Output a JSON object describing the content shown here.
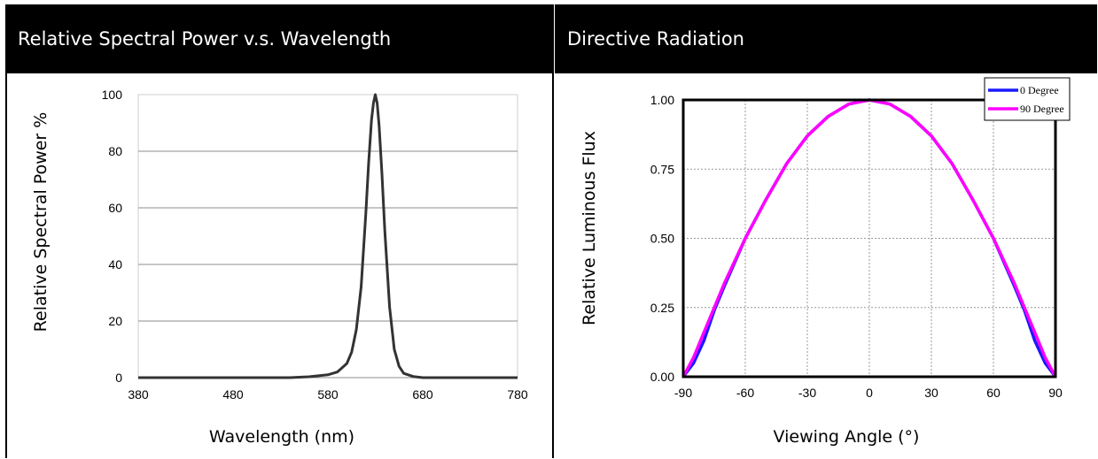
{
  "header": {
    "left_title": "Relative Spectral Power v.s. Wavelength",
    "right_title": "Directive Radiation"
  },
  "chart_data": [
    {
      "type": "line",
      "xlabel": "Wavelength (nm)",
      "ylabel": "Relative Spectral Power %",
      "xlim": [
        380,
        780
      ],
      "ylim": [
        0,
        100
      ],
      "x_ticks": [
        380,
        480,
        580,
        680,
        780
      ],
      "y_ticks": [
        0,
        20,
        40,
        60,
        80,
        100
      ],
      "grid": "horizontal",
      "legend": "none",
      "series": [
        {
          "color": "#333333",
          "x": [
            380,
            540,
            560,
            580,
            590,
            600,
            605,
            610,
            615,
            620,
            623,
            626,
            628,
            630,
            632,
            634,
            637,
            640,
            645,
            650,
            655,
            660,
            670,
            680,
            780
          ],
          "y": [
            0,
            0,
            0.3,
            1,
            2,
            5,
            9,
            17,
            32,
            58,
            76,
            91,
            97,
            100,
            97,
            89,
            72,
            52,
            25,
            10,
            4,
            1.5,
            0.4,
            0,
            0
          ]
        }
      ]
    },
    {
      "type": "line",
      "xlabel": "Viewing Angle (°)",
      "ylabel": "Relative Luminous Flux",
      "xlim": [
        -90,
        90
      ],
      "ylim": [
        0,
        1
      ],
      "x_ticks": [
        -90,
        -60,
        -30,
        0,
        30,
        60,
        90
      ],
      "y_ticks": [
        "0.00",
        "0.25",
        "0.50",
        "0.75",
        "1.00"
      ],
      "grid": "both",
      "legend": "top-right",
      "series": [
        {
          "name": "0 Degree",
          "color": "#1a1aff",
          "x": [
            -90,
            -85,
            -80,
            -75,
            -70,
            -60,
            -50,
            -40,
            -30,
            -20,
            -10,
            0,
            10,
            20,
            30,
            40,
            50,
            60,
            70,
            75,
            80,
            85,
            90
          ],
          "y": [
            0,
            0.05,
            0.13,
            0.24,
            0.33,
            0.5,
            0.64,
            0.77,
            0.87,
            0.94,
            0.985,
            1,
            0.985,
            0.94,
            0.87,
            0.77,
            0.64,
            0.5,
            0.33,
            0.24,
            0.13,
            0.05,
            0
          ]
        },
        {
          "name": "90 Degree",
          "color": "#ff00ff",
          "x": [
            -90,
            -85,
            -80,
            -75,
            -70,
            -60,
            -50,
            -40,
            -30,
            -20,
            -10,
            0,
            10,
            20,
            30,
            40,
            50,
            60,
            70,
            75,
            80,
            85,
            90
          ],
          "y": [
            0,
            0.07,
            0.16,
            0.25,
            0.34,
            0.5,
            0.64,
            0.77,
            0.87,
            0.94,
            0.985,
            1,
            0.985,
            0.94,
            0.87,
            0.77,
            0.64,
            0.5,
            0.34,
            0.25,
            0.16,
            0.07,
            0
          ]
        }
      ]
    }
  ]
}
